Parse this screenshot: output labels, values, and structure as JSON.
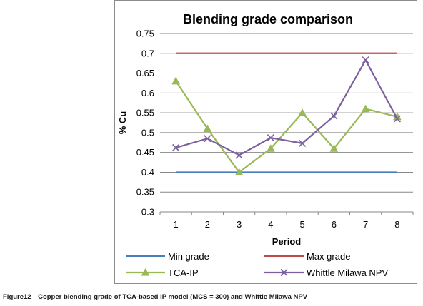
{
  "chart_data": {
    "type": "line",
    "title": "Blending grade comparison",
    "xlabel": "Period",
    "ylabel": "% Cu",
    "categories": [
      "1",
      "2",
      "3",
      "4",
      "5",
      "6",
      "7",
      "8"
    ],
    "ylim": [
      0.3,
      0.75
    ],
    "yticks": [
      "0.3",
      "0.35",
      "0.4",
      "0.45",
      "0.5",
      "0.55",
      "0.6",
      "0.65",
      "0.7",
      "0.75"
    ],
    "grid": true,
    "legend_position": "bottom",
    "series": [
      {
        "name": "Min grade",
        "values": [
          0.4,
          0.4,
          0.4,
          0.4,
          0.4,
          0.4,
          0.4,
          0.4
        ],
        "color": "#4a7ebb",
        "marker": "none"
      },
      {
        "name": "Max grade",
        "values": [
          0.7,
          0.7,
          0.7,
          0.7,
          0.7,
          0.7,
          0.7,
          0.7
        ],
        "color": "#be4b48",
        "marker": "none"
      },
      {
        "name": "TCA-IP",
        "values": [
          0.63,
          0.51,
          0.4,
          0.46,
          0.55,
          0.46,
          0.56,
          0.54
        ],
        "color": "#98b954",
        "marker": "triangle"
      },
      {
        "name": "Whittle Milawa NPV",
        "values": [
          0.462,
          0.485,
          0.443,
          0.487,
          0.473,
          0.542,
          0.683,
          0.535
        ],
        "color": "#7d60a0",
        "marker": "x"
      }
    ]
  },
  "caption": "Figure12—Copper blending grade of TCA-based IP model (MCS = 300) and Whittle Milawa NPV"
}
